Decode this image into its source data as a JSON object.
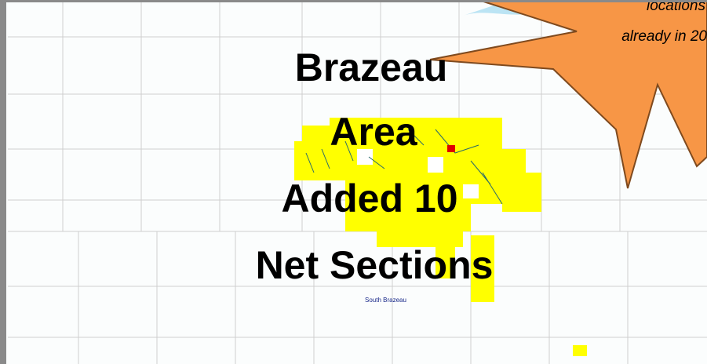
{
  "title_lines": [
    "Brazeau",
    "Area",
    "Added 10",
    "Net Sections"
  ],
  "callout_lines": [
    "locations",
    "already in 20"
  ],
  "map_labels": [
    "South Brazeau"
  ]
}
